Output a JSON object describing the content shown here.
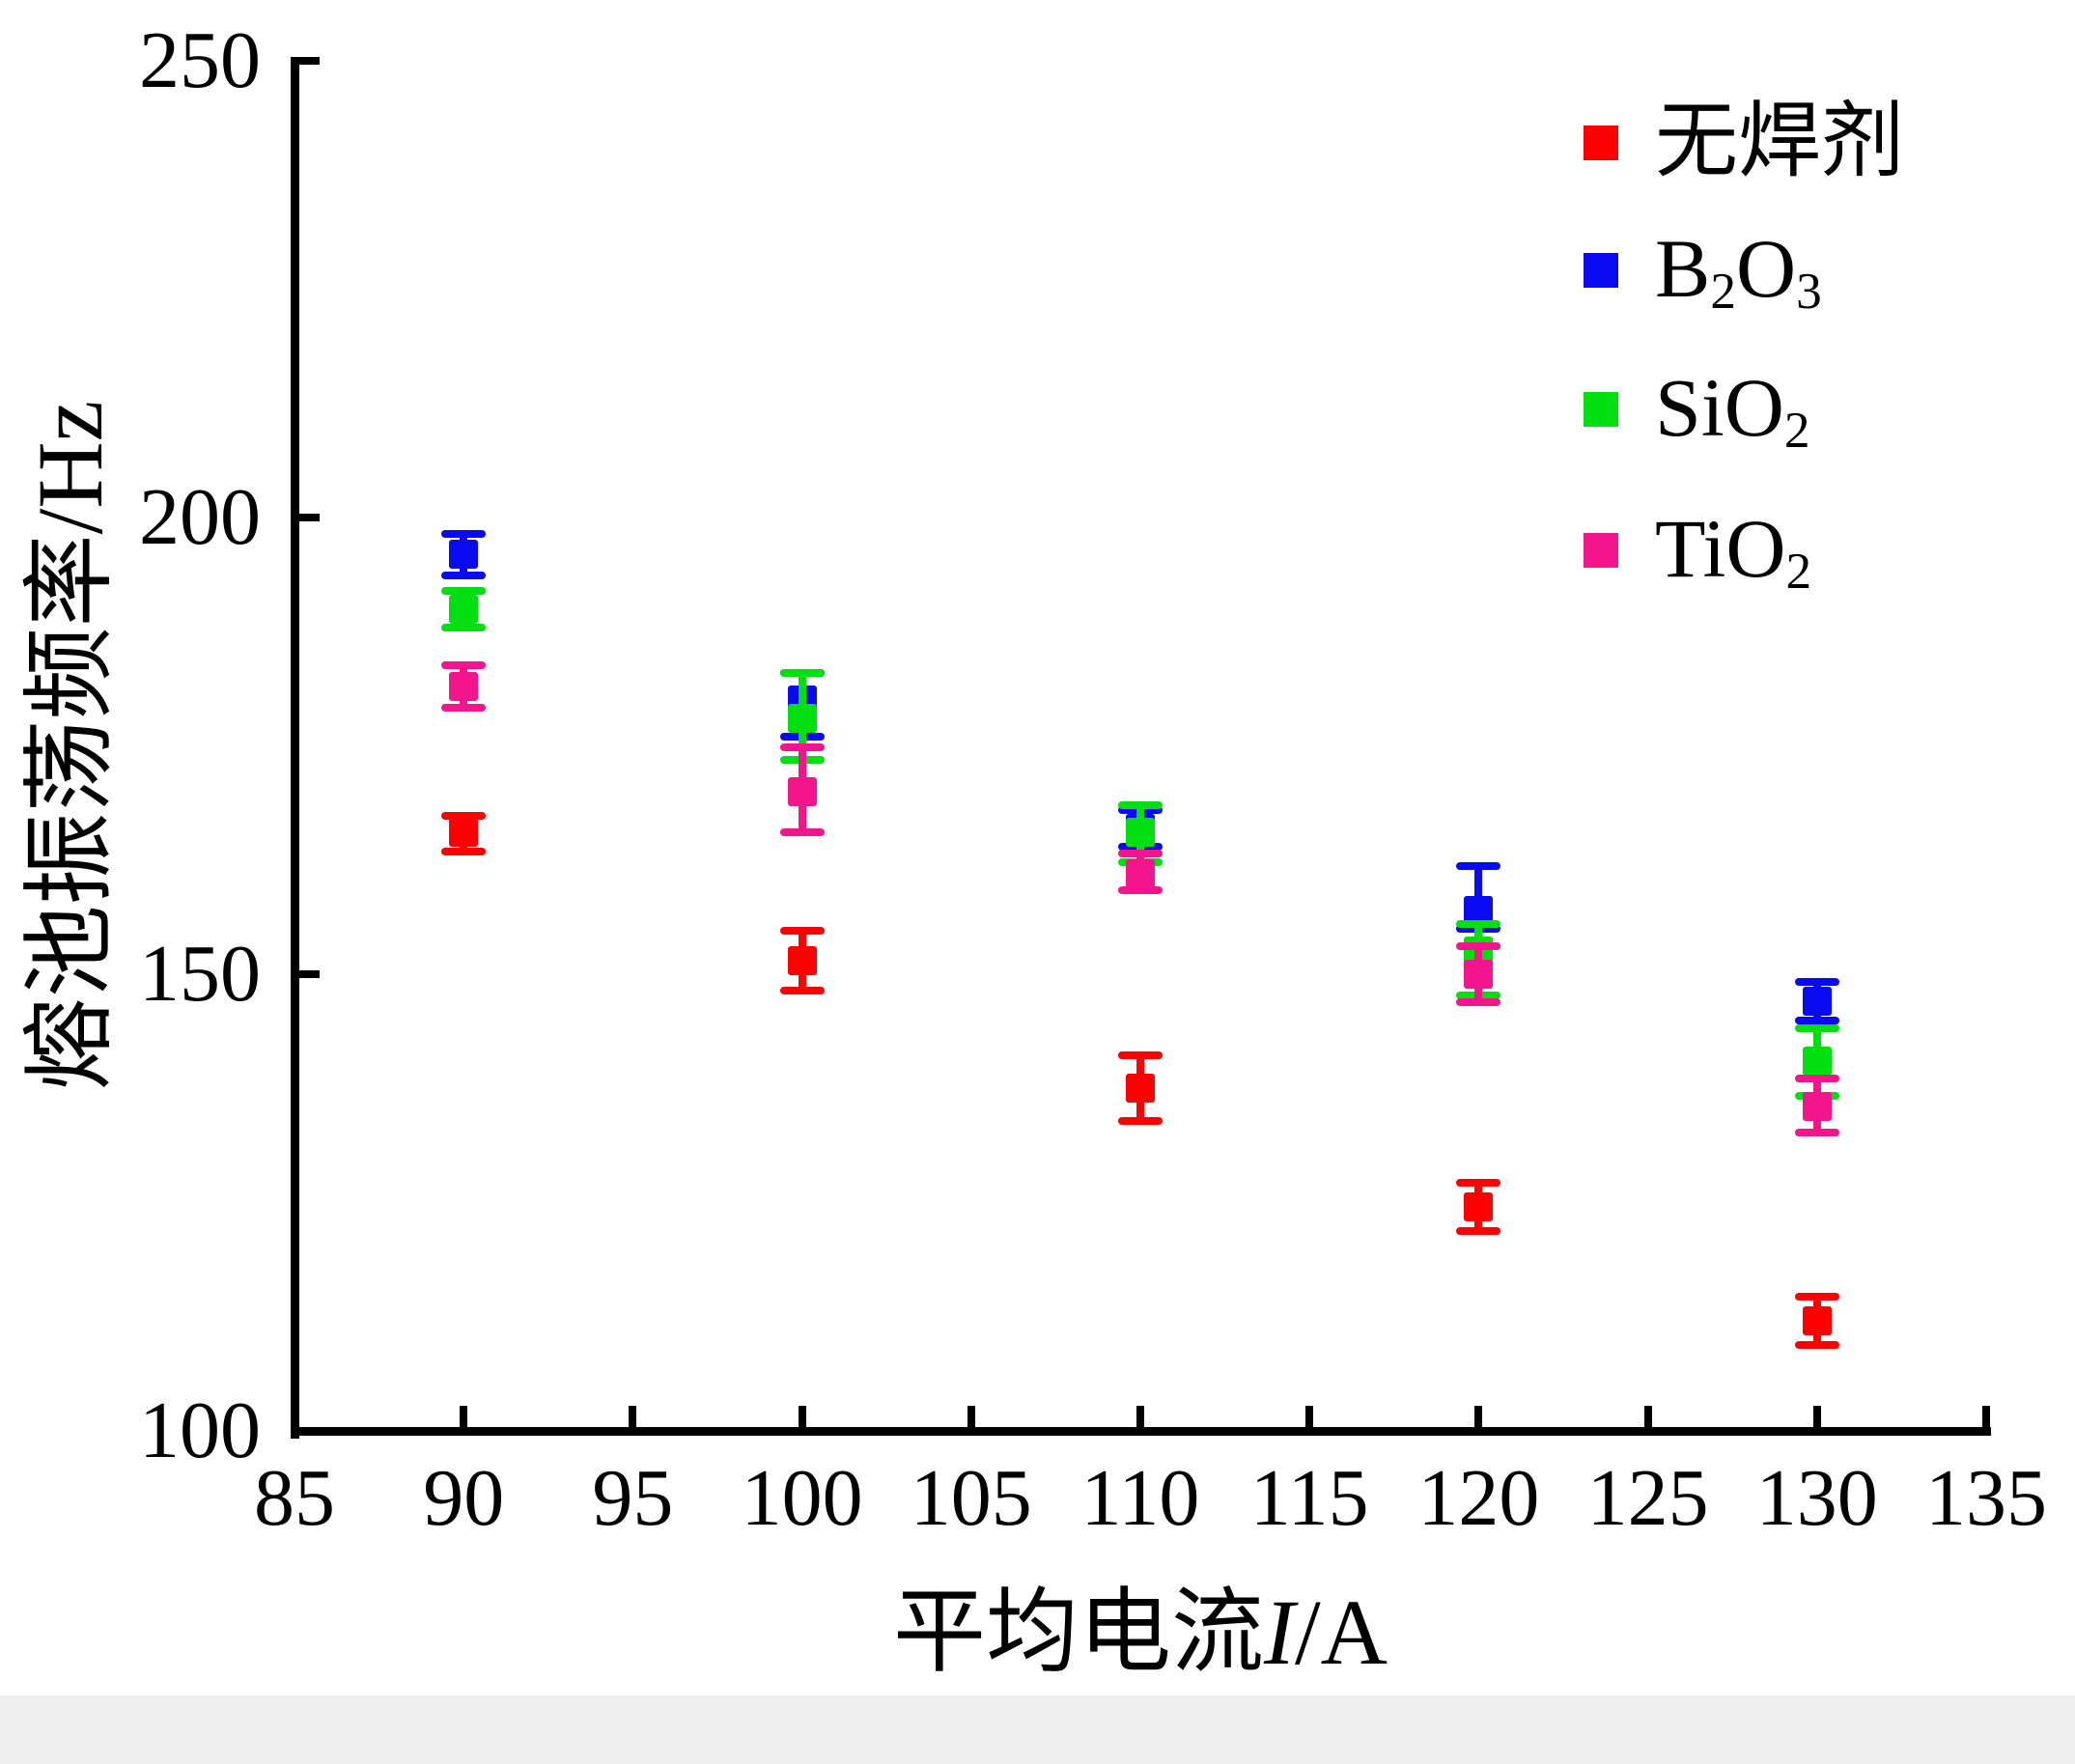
{
  "chart_data": {
    "type": "scatter",
    "title": "",
    "ylabel": "熔池振荡频率/Hz",
    "xlabel_segments": [
      {
        "t": "平均电流"
      },
      {
        "t": "I",
        "style": "italic"
      },
      {
        "t": "/A"
      }
    ],
    "xlim": [
      85,
      135
    ],
    "ylim": [
      100,
      250
    ],
    "x_ticks": [
      "85",
      "90",
      "95",
      "100",
      "105",
      "110",
      "115",
      "120",
      "125",
      "130",
      "135"
    ],
    "y_ticks": [
      "250",
      "200",
      "150",
      "100"
    ],
    "x_tick_values": [
      85,
      90,
      95,
      100,
      105,
      110,
      115,
      120,
      125,
      130,
      135
    ],
    "y_tick_values": [
      250,
      200,
      150,
      100
    ],
    "grid": false,
    "legend_position": "upper right",
    "series": [
      {
        "name": "无焊剂",
        "label_segments": [
          {
            "t": "无焊剂"
          }
        ],
        "color": "#FF0000",
        "x": [
          90,
          100,
          110,
          120,
          130
        ],
        "y": [
          165.5,
          151.5,
          137.5,
          124.5,
          112
        ],
        "err_up": [
          1.8,
          3.3,
          3.6,
          2.7,
          2.7
        ],
        "err_down": [
          2.1,
          3.3,
          3.6,
          2.6,
          2.6
        ]
      },
      {
        "name": "B2O3",
        "label_segments": [
          {
            "t": "B"
          },
          {
            "t": "2",
            "style": "sub"
          },
          {
            "t": "O"
          },
          {
            "t": "3",
            "style": "sub"
          }
        ],
        "color": "#0A0AF0",
        "x": [
          90,
          100,
          110,
          120,
          130
        ],
        "y": [
          196,
          180,
          166,
          157,
          147
        ],
        "err_up": [
          2.2,
          3.0,
          2.0,
          4.8,
          2.2
        ],
        "err_down": [
          2.3,
          4.0,
          2.0,
          2.0,
          2.1
        ]
      },
      {
        "name": "SiO2",
        "label_segments": [
          {
            "t": "S"
          },
          {
            "t": "i"
          },
          {
            "t": "O"
          },
          {
            "t": "2",
            "style": "sub"
          }
        ],
        "color": "#00DF10",
        "x": [
          90,
          100,
          110,
          120,
          130
        ],
        "y": [
          190,
          178,
          165.5,
          152.5,
          140.5
        ],
        "err_up": [
          2.0,
          5.0,
          3.0,
          3.0,
          3.6
        ],
        "err_down": [
          2.0,
          4.5,
          3.2,
          4.8,
          3.8
        ]
      },
      {
        "name": "TiO2",
        "label_segments": [
          {
            "t": "T"
          },
          {
            "t": "i"
          },
          {
            "t": "O"
          },
          {
            "t": "2",
            "style": "sub"
          }
        ],
        "color": "#F4148C",
        "x": [
          90,
          100,
          110,
          120,
          130
        ],
        "y": [
          181.5,
          170,
          161,
          150,
          135.5
        ],
        "err_up": [
          2.3,
          4.8,
          2.2,
          3.1,
          3.1
        ],
        "err_down": [
          2.3,
          4.5,
          1.8,
          3.1,
          2.8
        ]
      }
    ]
  }
}
